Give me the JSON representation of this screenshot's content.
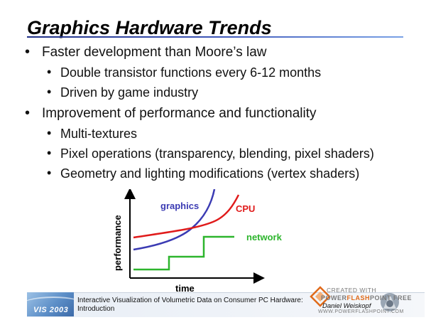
{
  "slide": {
    "title": "Graphics Hardware Trends",
    "bullets": [
      {
        "level": 1,
        "text": "Faster development than Moore’s law"
      },
      {
        "level": 2,
        "text": "Double transistor functions every 6-12 months"
      },
      {
        "level": 2,
        "text": "Driven by game industry"
      },
      {
        "level": 1,
        "text": "Improvement of performance and functionality"
      },
      {
        "level": 2,
        "text": "Multi-textures"
      },
      {
        "level": 2,
        "text": "Pixel operations (transparency, blending, pixel shaders)"
      },
      {
        "level": 2,
        "text": "Geometry and lighting modifications (vertex shaders)"
      }
    ],
    "bullet_glyph": "•"
  },
  "chart": {
    "xlabel": "time",
    "ylabel": "performance",
    "series": [
      {
        "name": "graphics",
        "color": "#3b3bb3"
      },
      {
        "name": "CPU",
        "color": "#e01b1b"
      },
      {
        "name": "network",
        "color": "#2db52d"
      }
    ]
  },
  "footer": {
    "logo_text": "VIS 2003",
    "line1": "Interactive Visualization of Volumetric Data on Consumer PC Hardware:",
    "line2": "Introduction",
    "author": "Daniel Weiskopf",
    "watermark": {
      "line1": "CREATED WITH",
      "line2a": "POWER",
      "line2b": "FLASH",
      "line2c": "POINT",
      "line2d": "FREE",
      "line3": "WWW.POWERFLASHPOINT.COM",
      "brand_color": "#e06a1a"
    }
  }
}
